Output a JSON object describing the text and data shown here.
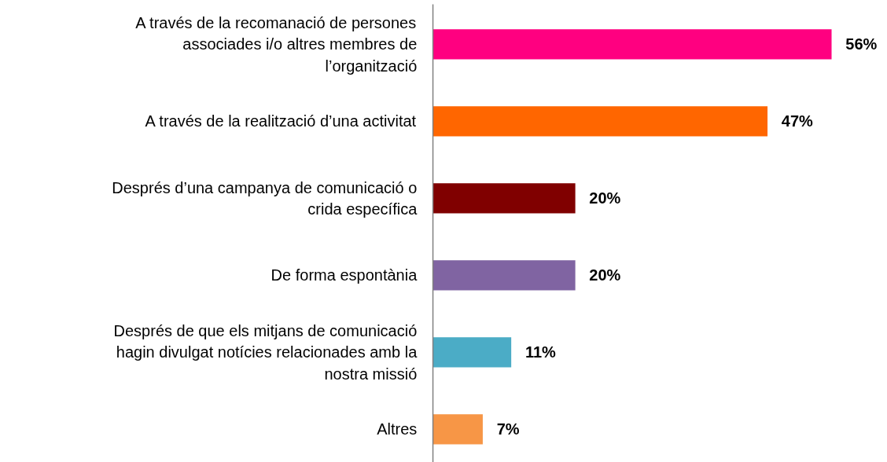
{
  "chart_data": {
    "type": "bar",
    "orientation": "horizontal",
    "data_labels": true,
    "grid": false,
    "categories": [
      "A través de la recomanació de persones associades i/o altres membres de l’organització",
      "A través de la realització d’una activitat",
      "Després d’una campanya de comunicació o crida específica",
      "De forma espontània",
      "Després de que els mitjans de comunicació hagin divulgat notícies relacionades amb la nostra missió",
      "Altres"
    ],
    "values": [
      56,
      47,
      20,
      20,
      11,
      7
    ],
    "value_labels": [
      "56%",
      "47%",
      "20%",
      "20%",
      "11%",
      "7%"
    ],
    "colors": [
      "#ff0080",
      "#ff6600",
      "#800000",
      "#8064a2",
      "#4bacc6",
      "#f79646"
    ]
  }
}
